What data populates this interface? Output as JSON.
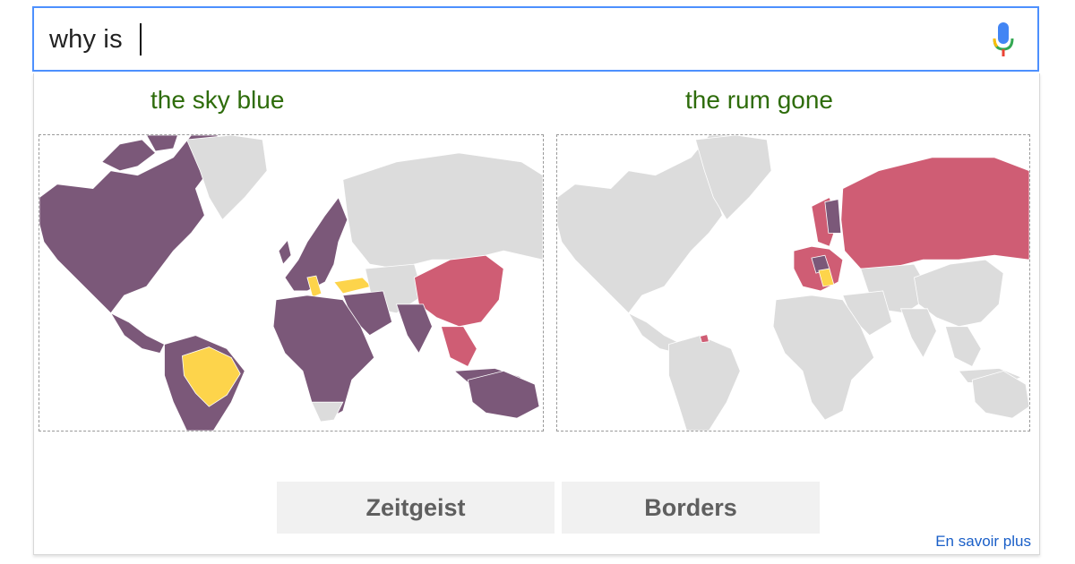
{
  "search": {
    "query": "why is"
  },
  "suggestions": [
    {
      "label": "the sky blue"
    },
    {
      "label": "the rum gone"
    }
  ],
  "maps": [
    {
      "name": "map-sky-blue",
      "highlight_colors": [
        "#7b5879",
        "#cf5d74",
        "#fdd44b"
      ]
    },
    {
      "name": "map-rum-gone",
      "highlight_colors": [
        "#cf5d74",
        "#7b5879",
        "#fdd44b"
      ]
    }
  ],
  "colors": {
    "land": "#dcdcdc",
    "purple": "#7b5879",
    "red": "#cf5d74",
    "yellow": "#fdd44b",
    "suggestion": "#2e6c0b",
    "focus": "#4d90fe"
  },
  "buttons": {
    "zeitgeist": "Zeitgeist",
    "borders": "Borders"
  },
  "footer": {
    "learn_more": "En savoir plus"
  },
  "icons": {
    "mic": "microphone-icon"
  }
}
